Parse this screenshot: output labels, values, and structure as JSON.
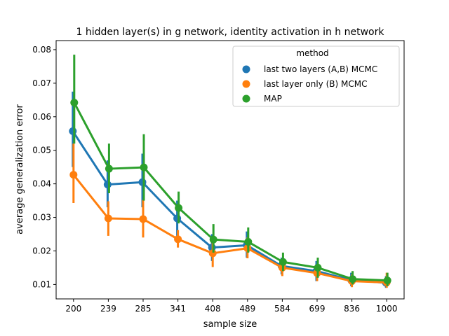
{
  "chart_data": {
    "type": "line",
    "title": "1 hidden layer(s) in g network, identity activation in h network",
    "xlabel": "sample size",
    "ylabel": "average generalization error",
    "categories": [
      "200",
      "239",
      "285",
      "341",
      "408",
      "489",
      "584",
      "699",
      "836",
      "1000"
    ],
    "ylim": [
      0.0057,
      0.0827
    ],
    "yticks": [
      0.01,
      0.02,
      0.03,
      0.04,
      0.05,
      0.06,
      0.07,
      0.08
    ],
    "ytick_labels": [
      "0.01",
      "0.02",
      "0.03",
      "0.04",
      "0.05",
      "0.06",
      "0.07",
      "0.08"
    ],
    "grid": false,
    "legend": {
      "title": "method",
      "position": "top-right"
    },
    "series": [
      {
        "name": "last two layers (A,B) MCMC",
        "color": "#1f77b4",
        "values": [
          0.0557,
          0.0398,
          0.0405,
          0.0297,
          0.021,
          0.0217,
          0.0155,
          0.014,
          0.0113,
          0.0105
        ],
        "ci_low": [
          0.045,
          0.033,
          0.033,
          0.0245,
          0.017,
          0.018,
          0.013,
          0.011,
          0.0095,
          0.009
        ],
        "ci_high": [
          0.0675,
          0.047,
          0.049,
          0.035,
          0.025,
          0.0258,
          0.018,
          0.017,
          0.0135,
          0.0125
        ]
      },
      {
        "name": "last layer only (B) MCMC",
        "color": "#ff7f0e",
        "values": [
          0.0427,
          0.0297,
          0.0295,
          0.0235,
          0.0193,
          0.0208,
          0.015,
          0.0134,
          0.011,
          0.0106
        ],
        "ci_low": [
          0.0343,
          0.0245,
          0.024,
          0.021,
          0.0152,
          0.0178,
          0.0125,
          0.011,
          0.0092,
          0.009
        ],
        "ci_high": [
          0.052,
          0.0348,
          0.0352,
          0.0262,
          0.023,
          0.024,
          0.0175,
          0.0158,
          0.013,
          0.0135
        ]
      },
      {
        "name": "MAP",
        "color": "#2ca02c",
        "values": [
          0.0642,
          0.0445,
          0.0449,
          0.0328,
          0.0234,
          0.0227,
          0.0167,
          0.015,
          0.0116,
          0.0112
        ],
        "ci_low": [
          0.052,
          0.0372,
          0.035,
          0.0282,
          0.0195,
          0.0195,
          0.014,
          0.012,
          0.01,
          0.0095
        ],
        "ci_high": [
          0.0785,
          0.052,
          0.0548,
          0.0377,
          0.028,
          0.027,
          0.0195,
          0.018,
          0.014,
          0.0135
        ]
      }
    ]
  }
}
